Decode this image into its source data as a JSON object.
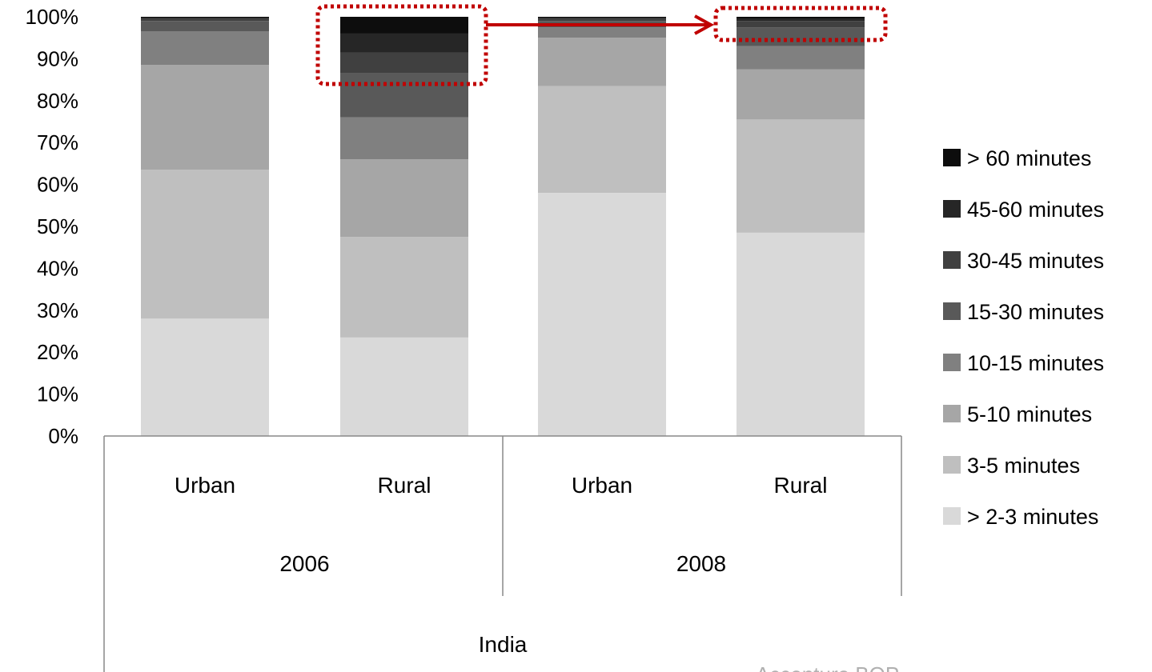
{
  "chart_data": {
    "type": "bar",
    "stacked": true,
    "percent_stacked": true,
    "title": "",
    "xlabel": "",
    "ylabel": "",
    "ylim": [
      0,
      100
    ],
    "yticks": [
      "0%",
      "10%",
      "20%",
      "30%",
      "40%",
      "50%",
      "60%",
      "70%",
      "80%",
      "90%",
      "100%"
    ],
    "grid": false,
    "legend_position": "right",
    "categories": [
      "Urban",
      "Rural",
      "Urban",
      "Rural"
    ],
    "category_groups": [
      {
        "label": "2006",
        "categories": [
          0,
          1
        ]
      },
      {
        "label": "2008",
        "categories": [
          2,
          3
        ]
      }
    ],
    "outer_group_label": "India",
    "series": [
      {
        "name": "> 2-3 minutes",
        "color": "#d9d9d9",
        "values": [
          28,
          23.5,
          58,
          48.5
        ]
      },
      {
        "name": "3-5 minutes",
        "color": "#bfbfbf",
        "values": [
          35.5,
          24,
          25.5,
          27
        ]
      },
      {
        "name": "5-10 minutes",
        "color": "#a6a6a6",
        "values": [
          25,
          18.5,
          11.5,
          12
        ]
      },
      {
        "name": "10-15 minutes",
        "color": "#808080",
        "values": [
          8,
          10,
          2.5,
          5.5
        ]
      },
      {
        "name": "15-30 minutes",
        "color": "#595959",
        "values": [
          2.5,
          10.5,
          1.5,
          4.5
        ]
      },
      {
        "name": "30-45 minutes",
        "color": "#404040",
        "values": [
          0.5,
          5,
          0.5,
          1.5
        ]
      },
      {
        "name": "45-60 minutes",
        "color": "#262626",
        "values": [
          0.3,
          4.5,
          0.3,
          0.5
        ]
      },
      {
        "name": "> 60 minutes",
        "color": "#0d0d0d",
        "values": [
          0.2,
          4,
          0.2,
          0.5
        ]
      }
    ],
    "annotations": {
      "highlight_color": "#c00000",
      "highlight_boxes": [
        "top of 2006 Rural bar (above ~86%)",
        "top of 2008 Rural bar (above ~93%)"
      ],
      "arrow": "from 2006 Rural highlight to 2008 Rural highlight"
    }
  },
  "footnote": "Accenture BOP..."
}
